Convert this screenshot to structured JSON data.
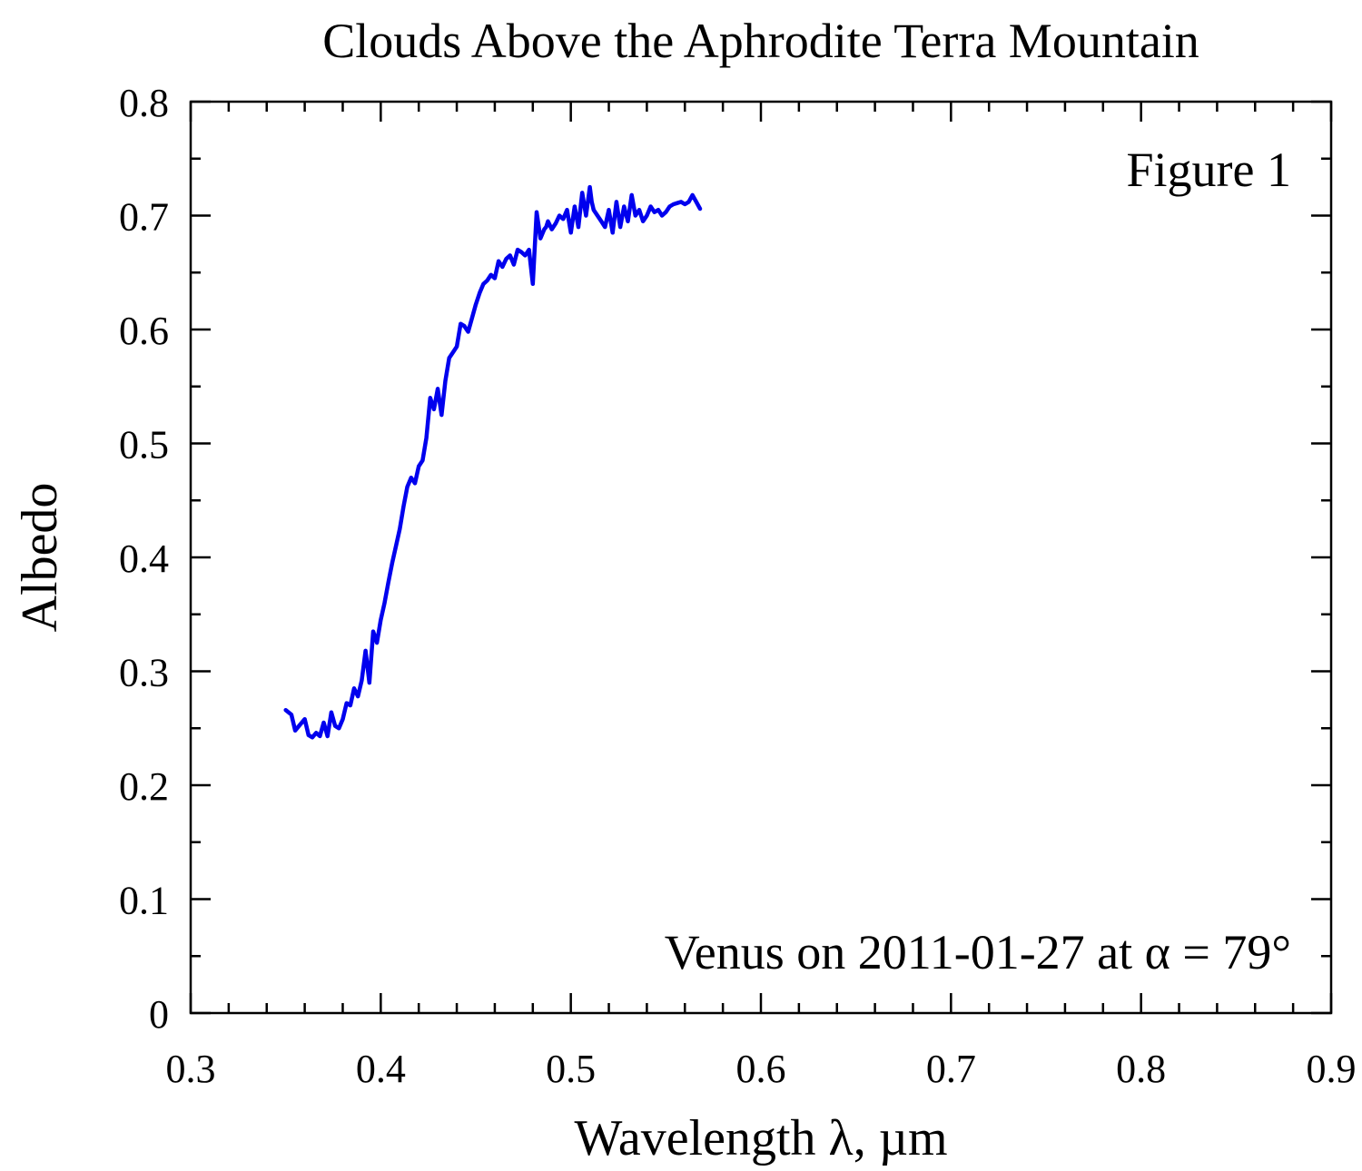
{
  "chart_data": {
    "type": "line",
    "title": "Clouds Above the Aphrodite Terra Mountain",
    "xlabel": "Wavelength λ, µm",
    "ylabel": "Albedo",
    "xlim": [
      0.3,
      0.9
    ],
    "ylim": [
      0,
      0.8
    ],
    "x_ticks": [
      "0.3",
      "0.4",
      "0.5",
      "0.6",
      "0.7",
      "0.8",
      "0.9"
    ],
    "y_ticks": [
      "0",
      "0.1",
      "0.2",
      "0.3",
      "0.4",
      "0.5",
      "0.6",
      "0.7",
      "0.8"
    ],
    "grid": false,
    "annotations": {
      "figure_label": "Figure 1",
      "note": "Venus on 2011-01-27 at α = 79°"
    },
    "series": [
      {
        "color": "#0000ee",
        "x": [
          0.35,
          0.353,
          0.355,
          0.357,
          0.36,
          0.362,
          0.364,
          0.366,
          0.368,
          0.37,
          0.372,
          0.374,
          0.376,
          0.378,
          0.38,
          0.382,
          0.384,
          0.386,
          0.388,
          0.39,
          0.392,
          0.394,
          0.396,
          0.398,
          0.4,
          0.402,
          0.404,
          0.406,
          0.408,
          0.41,
          0.412,
          0.414,
          0.416,
          0.418,
          0.42,
          0.422,
          0.424,
          0.426,
          0.428,
          0.43,
          0.432,
          0.434,
          0.436,
          0.438,
          0.44,
          0.442,
          0.444,
          0.446,
          0.448,
          0.45,
          0.452,
          0.454,
          0.456,
          0.458,
          0.46,
          0.462,
          0.464,
          0.466,
          0.468,
          0.47,
          0.472,
          0.474,
          0.476,
          0.478,
          0.48,
          0.482,
          0.484,
          0.486,
          0.487,
          0.488,
          0.49,
          0.492,
          0.494,
          0.496,
          0.498,
          0.5,
          0.502,
          0.504,
          0.506,
          0.508,
          0.51,
          0.511,
          0.512,
          0.514,
          0.516,
          0.518,
          0.52,
          0.522,
          0.524,
          0.526,
          0.528,
          0.53,
          0.532,
          0.534,
          0.536,
          0.538,
          0.54,
          0.542,
          0.544,
          0.546,
          0.548,
          0.55,
          0.552,
          0.554,
          0.556,
          0.558,
          0.56,
          0.562,
          0.564,
          0.566,
          0.568
        ],
        "y": [
          0.266,
          0.262,
          0.248,
          0.252,
          0.258,
          0.244,
          0.242,
          0.246,
          0.243,
          0.255,
          0.243,
          0.264,
          0.252,
          0.25,
          0.258,
          0.272,
          0.27,
          0.285,
          0.278,
          0.292,
          0.318,
          0.29,
          0.335,
          0.325,
          0.345,
          0.36,
          0.378,
          0.395,
          0.41,
          0.425,
          0.445,
          0.462,
          0.47,
          0.465,
          0.48,
          0.485,
          0.505,
          0.54,
          0.53,
          0.548,
          0.525,
          0.555,
          0.575,
          0.58,
          0.585,
          0.605,
          0.603,
          0.598,
          0.61,
          0.622,
          0.632,
          0.64,
          0.643,
          0.648,
          0.645,
          0.66,
          0.655,
          0.662,
          0.665,
          0.657,
          0.67,
          0.668,
          0.665,
          0.67,
          0.64,
          0.703,
          0.68,
          0.688,
          0.69,
          0.695,
          0.688,
          0.693,
          0.7,
          0.697,
          0.705,
          0.685,
          0.708,
          0.69,
          0.72,
          0.7,
          0.725,
          0.712,
          0.705,
          0.7,
          0.695,
          0.69,
          0.705,
          0.685,
          0.712,
          0.69,
          0.708,
          0.695,
          0.718,
          0.7,
          0.705,
          0.695,
          0.7,
          0.708,
          0.703,
          0.705,
          0.7,
          0.703,
          0.708,
          0.71,
          0.711,
          0.712,
          0.71,
          0.712,
          0.718,
          0.712,
          0.706
        ]
      }
    ]
  }
}
